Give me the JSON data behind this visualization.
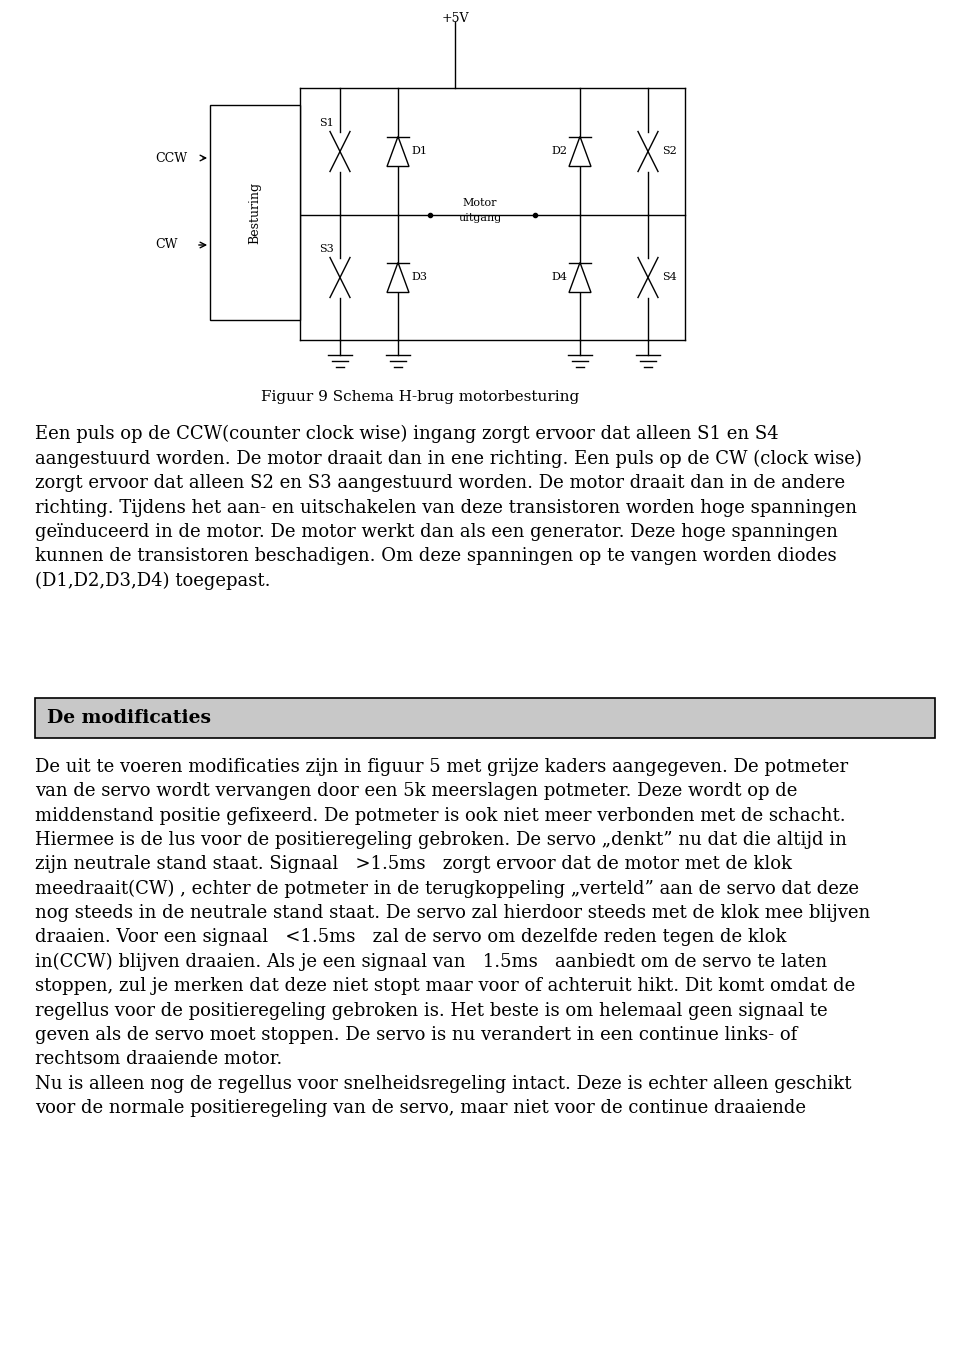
{
  "bg_color": "#ffffff",
  "fig_width": 9.6,
  "fig_height": 13.68,
  "fig_dpi": 100,
  "figure_caption": "Figuur 9 Schema H-brug motorbesturing",
  "paragraph1": "Een puls op de CCW(counter clock wise) ingang zorgt ervoor dat alleen S1 en S4\naangestuurd worden. De motor draait dan in ene richting. Een puls op de CW (clock wise)\nzorgt ervoor dat alleen S2 en S3 aangestuurd worden. De motor draait dan in de andere\nrichting. Tijdens het aan- en uitschakelen van deze transistoren worden hoge spanningen\ngeïnduceerd in de motor. De motor werkt dan als een generator. Deze hoge spanningen\nkunnen de transistoren beschadigen. Om deze spanningen op te vangen worden diodes\n(D1,D2,D3,D4) toegepast.",
  "header_box_text": "De modificaties",
  "paragraph2": "De uit te voeren modificaties zijn in figuur 5 met grijze kaders aangegeven. De potmeter\nvan de servo wordt vervangen door een 5k meerslagen potmeter. Deze wordt op de\nmiddenstand positie gefixeerd. De potmeter is ook niet meer verbonden met de schacht.\nHiermee is de lus voor de positieregeling gebroken. De servo „denkt” nu dat die altijd in\nzijn neutrale stand staat. Signaal   >1.5ms   zorgt ervoor dat de motor met de klok\nmeedraait(CW) , echter de potmeter in de terugkoppeling „verteld” aan de servo dat deze\nnog steeds in de neutrale stand staat. De servo zal hierdoor steeds met de klok mee blijven\ndraaien. Voor een signaal   <1.5ms   zal de servo om dezelfde reden tegen de klok\nin(CCW) blijven draaien. Als je een signaal van   1.5ms   aanbiedt om de servo te laten\nstoppen, zul je merken dat deze niet stopt maar voor of achteruit hikt. Dit komt omdat de\nregellus voor de positieregeling gebroken is. Het beste is om helemaal geen signaal te\ngeven als de servo moet stoppen. De servo is nu verandert in een continue links- of\nrechtsom draaiende motor.\nNu is alleen nog de regellus voor snelheidsregeling intact. Deze is echter alleen geschikt\nvoor de normale positieregeling van de servo, maar niet voor de continue draaiende",
  "text_font_size": 13.0,
  "header_font_size": 13.5,
  "caption_font_size": 11,
  "text_color": "#000000",
  "header_bg_color": "#c8c8c8",
  "header_border_color": "#000000"
}
